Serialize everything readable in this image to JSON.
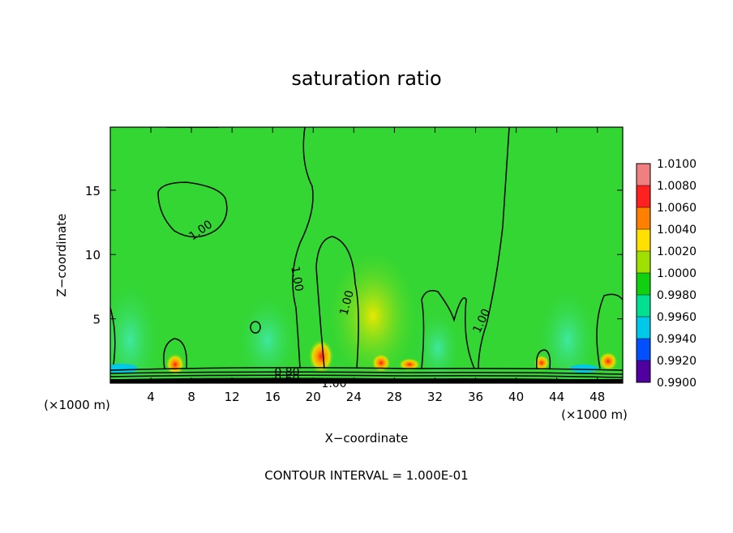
{
  "chart_data": {
    "type": "contour",
    "title": "saturation ratio",
    "x_label": "X−coordinate",
    "y_label": "Z−coordinate",
    "x_unit": "(×1000 m)",
    "y_unit": "(×1000 m)",
    "xlim": [
      0,
      50.5
    ],
    "ylim": [
      0,
      19.9
    ],
    "xticks": [
      4,
      8,
      12,
      16,
      20,
      24,
      28,
      32,
      36,
      40,
      44,
      48
    ],
    "yticks": [
      5,
      10,
      15
    ],
    "contour_labels": [
      "1.00",
      "1.00",
      "1.00",
      "1.00",
      "1.00",
      "0.80",
      "0.60"
    ],
    "footer": "CONTOUR INTERVAL = 1.000E-01",
    "colorbar": {
      "ticks": [
        {
          "value": 1.01,
          "label": "1.0100"
        },
        {
          "value": 1.008,
          "label": "1.0080"
        },
        {
          "value": 1.006,
          "label": "1.0060"
        },
        {
          "value": 1.004,
          "label": "1.0040"
        },
        {
          "value": 1.002,
          "label": "1.0020"
        },
        {
          "value": 1.0,
          "label": "1.0000"
        },
        {
          "value": 0.998,
          "label": "0.9980"
        },
        {
          "value": 0.996,
          "label": "0.9960"
        },
        {
          "value": 0.994,
          "label": "0.9940"
        },
        {
          "value": 0.992,
          "label": "0.9920"
        },
        {
          "value": 0.99,
          "label": "0.9900"
        }
      ],
      "colors": [
        "#f08080",
        "#ff2020",
        "#ff8000",
        "#ffe000",
        "#a0e000",
        "#10d010",
        "#00e090",
        "#00c8e8",
        "#0050ff",
        "#5000a0"
      ]
    }
  }
}
